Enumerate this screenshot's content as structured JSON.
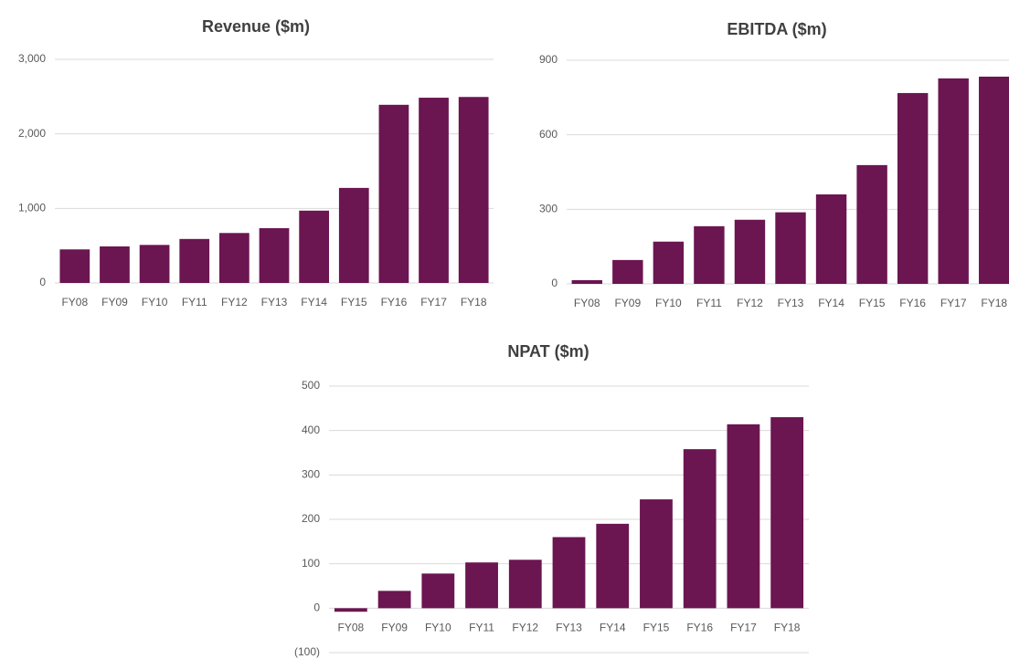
{
  "chart_data": [
    {
      "type": "bar",
      "title": "Revenue ($m)",
      "color": "#6b1551",
      "grid": true,
      "categories": [
        "FY08",
        "FY09",
        "FY10",
        "FY11",
        "FY12",
        "FY13",
        "FY14",
        "FY15",
        "FY16",
        "FY17",
        "FY18"
      ],
      "values": [
        450,
        490,
        510,
        590,
        670,
        735,
        970,
        1275,
        2390,
        2485,
        2495
      ],
      "ylim": [
        0,
        3000
      ],
      "yticks": [
        0,
        {
          "value": 1000,
          "label": "1,000"
        },
        {
          "value": 2000,
          "label": "2,000"
        },
        {
          "value": 3000,
          "label": "3,000"
        }
      ]
    },
    {
      "type": "bar",
      "title": "EBITDA ($m)",
      "color": "#6b1551",
      "grid": true,
      "categories": [
        "FY08",
        "FY09",
        "FY10",
        "FY11",
        "FY12",
        "FY13",
        "FY14",
        "FY15",
        "FY16",
        "FY17",
        "FY18"
      ],
      "values": [
        15,
        96,
        170,
        232,
        258,
        288,
        360,
        478,
        768,
        827,
        834
      ],
      "ylim": [
        0,
        900
      ],
      "yticks": [
        0,
        300,
        600,
        900
      ]
    },
    {
      "type": "bar",
      "title": "NPAT ($m)",
      "color": "#6b1551",
      "grid": true,
      "categories": [
        "FY08",
        "FY09",
        "FY10",
        "FY11",
        "FY12",
        "FY13",
        "FY14",
        "FY15",
        "FY16",
        "FY17",
        "FY18"
      ],
      "values": [
        -8,
        39,
        78,
        103,
        109,
        160,
        190,
        245,
        358,
        414,
        430
      ],
      "ylim": [
        -100,
        500
      ],
      "yticks": [
        {
          "value": -100,
          "label": "(100)"
        },
        0,
        100,
        200,
        300,
        400,
        500
      ]
    }
  ]
}
